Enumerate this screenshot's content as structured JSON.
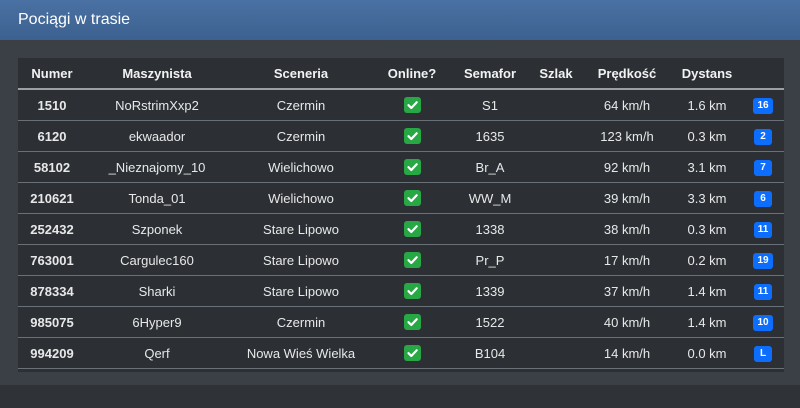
{
  "header": {
    "title": "Pociągi w trasie"
  },
  "table": {
    "columns": [
      "Numer",
      "Maszynista",
      "Sceneria",
      "Online?",
      "Semafor",
      "Szlak",
      "Prędkość",
      "Dystans"
    ],
    "rows": [
      {
        "numer": "1510",
        "maszynista": "NoRstrimXxp2",
        "sceneria": "Czermin",
        "semafor": "S1",
        "predkosc": "64 km/h",
        "dystans": "1.6 km",
        "badge": "16"
      },
      {
        "numer": "6120",
        "maszynista": "ekwaador",
        "sceneria": "Czermin",
        "semafor": "1635",
        "predkosc": "123 km/h",
        "dystans": "0.3 km",
        "badge": "2"
      },
      {
        "numer": "58102",
        "maszynista": "_Nieznajomy_10",
        "sceneria": "Wielichowo",
        "semafor": "Br_A",
        "predkosc": "92 km/h",
        "dystans": "3.1 km",
        "badge": "7"
      },
      {
        "numer": "210621",
        "maszynista": "Tonda_01",
        "sceneria": "Wielichowo",
        "semafor": "WW_M",
        "predkosc": "39 km/h",
        "dystans": "3.3 km",
        "badge": "6"
      },
      {
        "numer": "252432",
        "maszynista": "Szponek",
        "sceneria": "Stare Lipowo",
        "semafor": "1338",
        "predkosc": "38 km/h",
        "dystans": "0.3 km",
        "badge": "11"
      },
      {
        "numer": "763001",
        "maszynista": "Cargulec160",
        "sceneria": "Stare Lipowo",
        "semafor": "Pr_P",
        "predkosc": "17 km/h",
        "dystans": "0.2 km",
        "badge": "19"
      },
      {
        "numer": "878334",
        "maszynista": "Sharki",
        "sceneria": "Stare Lipowo",
        "semafor": "1339",
        "predkosc": "37 km/h",
        "dystans": "1.4 km",
        "badge": "11"
      },
      {
        "numer": "985075",
        "maszynista": "6Hyper9",
        "sceneria": "Czermin",
        "semafor": "1522",
        "predkosc": "40 km/h",
        "dystans": "1.4 km",
        "badge": "10"
      },
      {
        "numer": "994209",
        "maszynista": "Qerf",
        "sceneria": "Nowa Wieś Wielka",
        "semafor": "B104",
        "predkosc": "14 km/h",
        "dystans": "0.0 km",
        "badge": "L"
      }
    ]
  }
}
